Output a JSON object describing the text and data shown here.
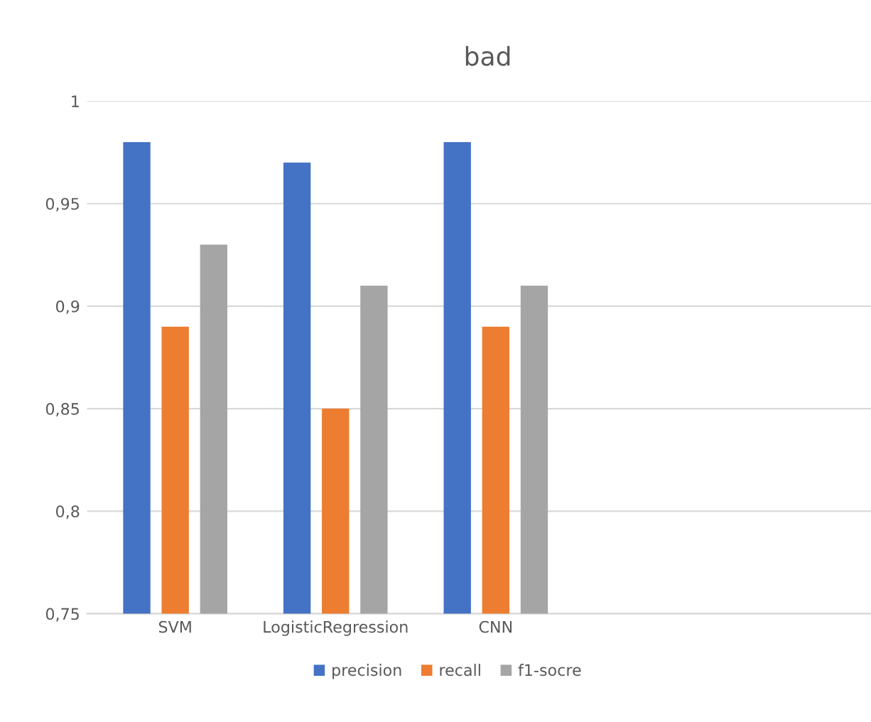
{
  "chart_data": {
    "type": "bar",
    "title": "bad",
    "categories": [
      "SVM",
      "LogisticRegression",
      "CNN",
      null,
      null
    ],
    "series": [
      {
        "name": "precision",
        "color": "#4472c4",
        "values": [
          0.98,
          0.97,
          0.98,
          null,
          null
        ]
      },
      {
        "name": "recall",
        "color": "#ed7d31",
        "values": [
          0.89,
          0.85,
          0.89,
          null,
          null
        ]
      },
      {
        "name": "f1-socre",
        "color": "#a5a5a5",
        "values": [
          0.93,
          0.91,
          0.91,
          null,
          null
        ]
      }
    ],
    "ylim": [
      0.75,
      1
    ],
    "yticks": [
      {
        "value": 0.75,
        "label": "0,75"
      },
      {
        "value": 0.8,
        "label": "0,8"
      },
      {
        "value": 0.85,
        "label": "0,85"
      },
      {
        "value": 0.9,
        "label": "0,9"
      },
      {
        "value": 0.95,
        "label": "0,95"
      },
      {
        "value": 1,
        "label": "1"
      }
    ],
    "grid": "y",
    "legend": "bottom"
  }
}
